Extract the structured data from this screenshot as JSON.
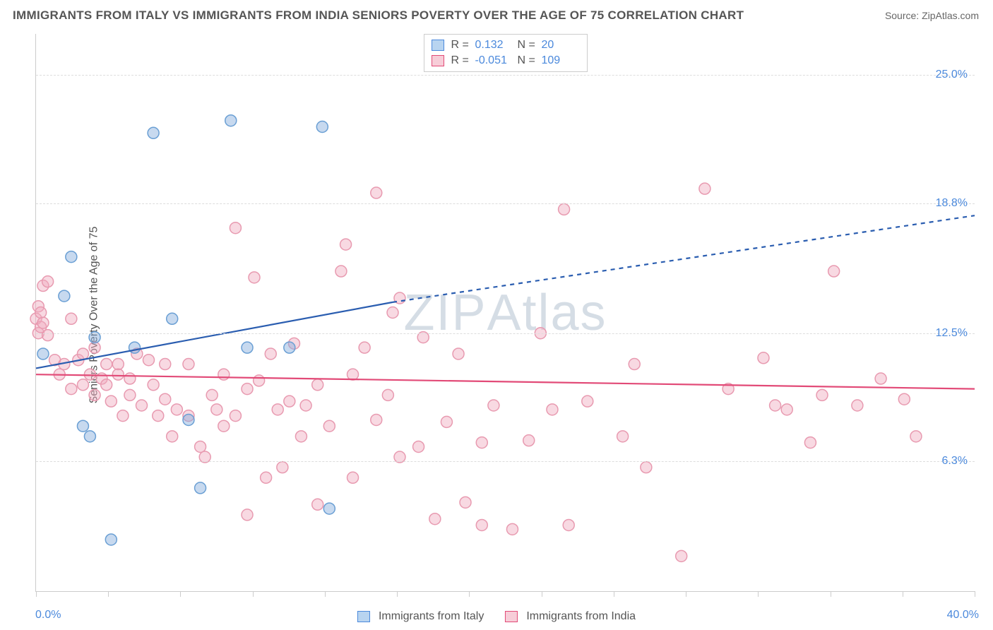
{
  "title": "IMMIGRANTS FROM ITALY VS IMMIGRANTS FROM INDIA SENIORS POVERTY OVER THE AGE OF 75 CORRELATION CHART",
  "source_prefix": "Source: ",
  "source": "ZipAtlas.com",
  "watermark": "ZIPAtlas",
  "ylabel": "Seniors Poverty Over the Age of 75",
  "chart": {
    "type": "scatter",
    "background_color": "#ffffff",
    "grid_color": "#dddddd",
    "border_color": "#cccccc",
    "xlim": [
      0,
      40
    ],
    "ylim": [
      0,
      27
    ],
    "x_start_label": "0.0%",
    "x_end_label": "40.0%",
    "xtick_positions": [
      0,
      3.08,
      6.15,
      9.23,
      12.31,
      15.38,
      18.46,
      21.54,
      24.62,
      27.69,
      30.77,
      33.85,
      36.92,
      40
    ],
    "ygrid": [
      {
        "value": 6.3,
        "label": "6.3%"
      },
      {
        "value": 12.5,
        "label": "12.5%"
      },
      {
        "value": 18.8,
        "label": "18.8%"
      },
      {
        "value": 25.0,
        "label": "25.0%"
      }
    ],
    "series": [
      {
        "name": "Immigrants from Italy",
        "swatch_fill": "#b8d4f0",
        "swatch_border": "#4b89dc",
        "marker_fill": "rgba(130,170,220,0.45)",
        "marker_stroke": "#6a9fd4",
        "marker_r": 8,
        "R": "0.132",
        "N": "20",
        "trend": {
          "color": "#2a5db0",
          "width": 2.2,
          "solid_x": [
            0,
            15.2
          ],
          "solid_y": [
            10.8,
            14.0
          ],
          "dash_x": [
            15.2,
            40
          ],
          "dash_y": [
            14.0,
            18.2
          ],
          "dash_pattern": "6,6"
        },
        "points": [
          [
            0.3,
            11.5
          ],
          [
            1.2,
            14.3
          ],
          [
            1.5,
            16.2
          ],
          [
            2.0,
            8.0
          ],
          [
            2.3,
            7.5
          ],
          [
            2.5,
            12.3
          ],
          [
            3.2,
            2.5
          ],
          [
            4.2,
            11.8
          ],
          [
            5.0,
            22.2
          ],
          [
            5.8,
            13.2
          ],
          [
            6.5,
            8.3
          ],
          [
            7.0,
            5.0
          ],
          [
            8.3,
            22.8
          ],
          [
            9.0,
            11.8
          ],
          [
            10.8,
            11.8
          ],
          [
            12.2,
            22.5
          ],
          [
            12.5,
            4.0
          ]
        ]
      },
      {
        "name": "Immigrants from India",
        "swatch_fill": "#f7cdd8",
        "swatch_border": "#e24a77",
        "marker_fill": "rgba(240,170,190,0.45)",
        "marker_stroke": "#e89ab0",
        "marker_r": 8,
        "R": "-0.051",
        "N": "109",
        "trend": {
          "color": "#e24a77",
          "width": 2.2,
          "solid_x": [
            0,
            40
          ],
          "solid_y": [
            10.5,
            9.8
          ],
          "dash_x": null,
          "dash_y": null,
          "dash_pattern": null
        },
        "points": [
          [
            0.0,
            13.2
          ],
          [
            0.1,
            12.5
          ],
          [
            0.1,
            13.8
          ],
          [
            0.2,
            12.8
          ],
          [
            0.2,
            13.5
          ],
          [
            0.3,
            13.0
          ],
          [
            0.3,
            14.8
          ],
          [
            0.5,
            12.4
          ],
          [
            0.5,
            15.0
          ],
          [
            0.8,
            11.2
          ],
          [
            1.0,
            10.5
          ],
          [
            1.2,
            11.0
          ],
          [
            1.5,
            13.2
          ],
          [
            1.5,
            9.8
          ],
          [
            1.8,
            11.2
          ],
          [
            2.0,
            10.0
          ],
          [
            2.0,
            11.5
          ],
          [
            2.3,
            10.5
          ],
          [
            2.5,
            9.5
          ],
          [
            2.5,
            11.8
          ],
          [
            2.8,
            10.3
          ],
          [
            3.0,
            10.0
          ],
          [
            3.0,
            11.0
          ],
          [
            3.2,
            9.2
          ],
          [
            3.5,
            10.5
          ],
          [
            3.5,
            11.0
          ],
          [
            3.7,
            8.5
          ],
          [
            4.0,
            9.5
          ],
          [
            4.0,
            10.3
          ],
          [
            4.3,
            11.5
          ],
          [
            4.5,
            9.0
          ],
          [
            4.8,
            11.2
          ],
          [
            5.0,
            10.0
          ],
          [
            5.2,
            8.5
          ],
          [
            5.5,
            9.3
          ],
          [
            5.5,
            11.0
          ],
          [
            5.8,
            7.5
          ],
          [
            6.0,
            8.8
          ],
          [
            6.5,
            8.5
          ],
          [
            6.5,
            11.0
          ],
          [
            7.0,
            7.0
          ],
          [
            7.2,
            6.5
          ],
          [
            7.5,
            9.5
          ],
          [
            7.7,
            8.8
          ],
          [
            8.0,
            10.5
          ],
          [
            8.0,
            8.0
          ],
          [
            8.5,
            17.6
          ],
          [
            8.5,
            8.5
          ],
          [
            9.0,
            9.8
          ],
          [
            9.0,
            3.7
          ],
          [
            9.3,
            15.2
          ],
          [
            9.5,
            10.2
          ],
          [
            9.8,
            5.5
          ],
          [
            10.0,
            11.5
          ],
          [
            10.3,
            8.8
          ],
          [
            10.5,
            6.0
          ],
          [
            10.8,
            9.2
          ],
          [
            11.0,
            12.0
          ],
          [
            11.3,
            7.5
          ],
          [
            11.5,
            9.0
          ],
          [
            12.0,
            10.0
          ],
          [
            12.0,
            4.2
          ],
          [
            12.5,
            8.0
          ],
          [
            13.0,
            15.5
          ],
          [
            13.2,
            16.8
          ],
          [
            13.5,
            10.5
          ],
          [
            13.5,
            5.5
          ],
          [
            14.0,
            11.8
          ],
          [
            14.5,
            8.3
          ],
          [
            14.5,
            19.3
          ],
          [
            15.0,
            9.5
          ],
          [
            15.2,
            13.5
          ],
          [
            15.5,
            6.5
          ],
          [
            15.5,
            14.2
          ],
          [
            16.3,
            7.0
          ],
          [
            16.5,
            12.3
          ],
          [
            17.0,
            3.5
          ],
          [
            17.5,
            8.2
          ],
          [
            18.0,
            11.5
          ],
          [
            18.3,
            4.3
          ],
          [
            19.0,
            7.2
          ],
          [
            19.0,
            3.2
          ],
          [
            19.5,
            9.0
          ],
          [
            20.3,
            3.0
          ],
          [
            21.0,
            7.3
          ],
          [
            21.5,
            12.5
          ],
          [
            22.0,
            8.8
          ],
          [
            22.5,
            18.5
          ],
          [
            22.7,
            3.2
          ],
          [
            23.5,
            9.2
          ],
          [
            25.0,
            7.5
          ],
          [
            25.5,
            11.0
          ],
          [
            26.0,
            6.0
          ],
          [
            27.5,
            1.7
          ],
          [
            28.5,
            19.5
          ],
          [
            29.5,
            9.8
          ],
          [
            31.0,
            11.3
          ],
          [
            31.5,
            9.0
          ],
          [
            32.0,
            8.8
          ],
          [
            33.0,
            7.2
          ],
          [
            33.5,
            9.5
          ],
          [
            34.0,
            15.5
          ],
          [
            35.0,
            9.0
          ],
          [
            36.0,
            10.3
          ],
          [
            37.0,
            9.3
          ],
          [
            37.5,
            7.5
          ]
        ]
      }
    ],
    "legend_labels": {
      "italy": "Immigrants from Italy",
      "india": "Immigrants from India"
    },
    "stat_labels": {
      "r": "R =",
      "n": "N ="
    }
  }
}
